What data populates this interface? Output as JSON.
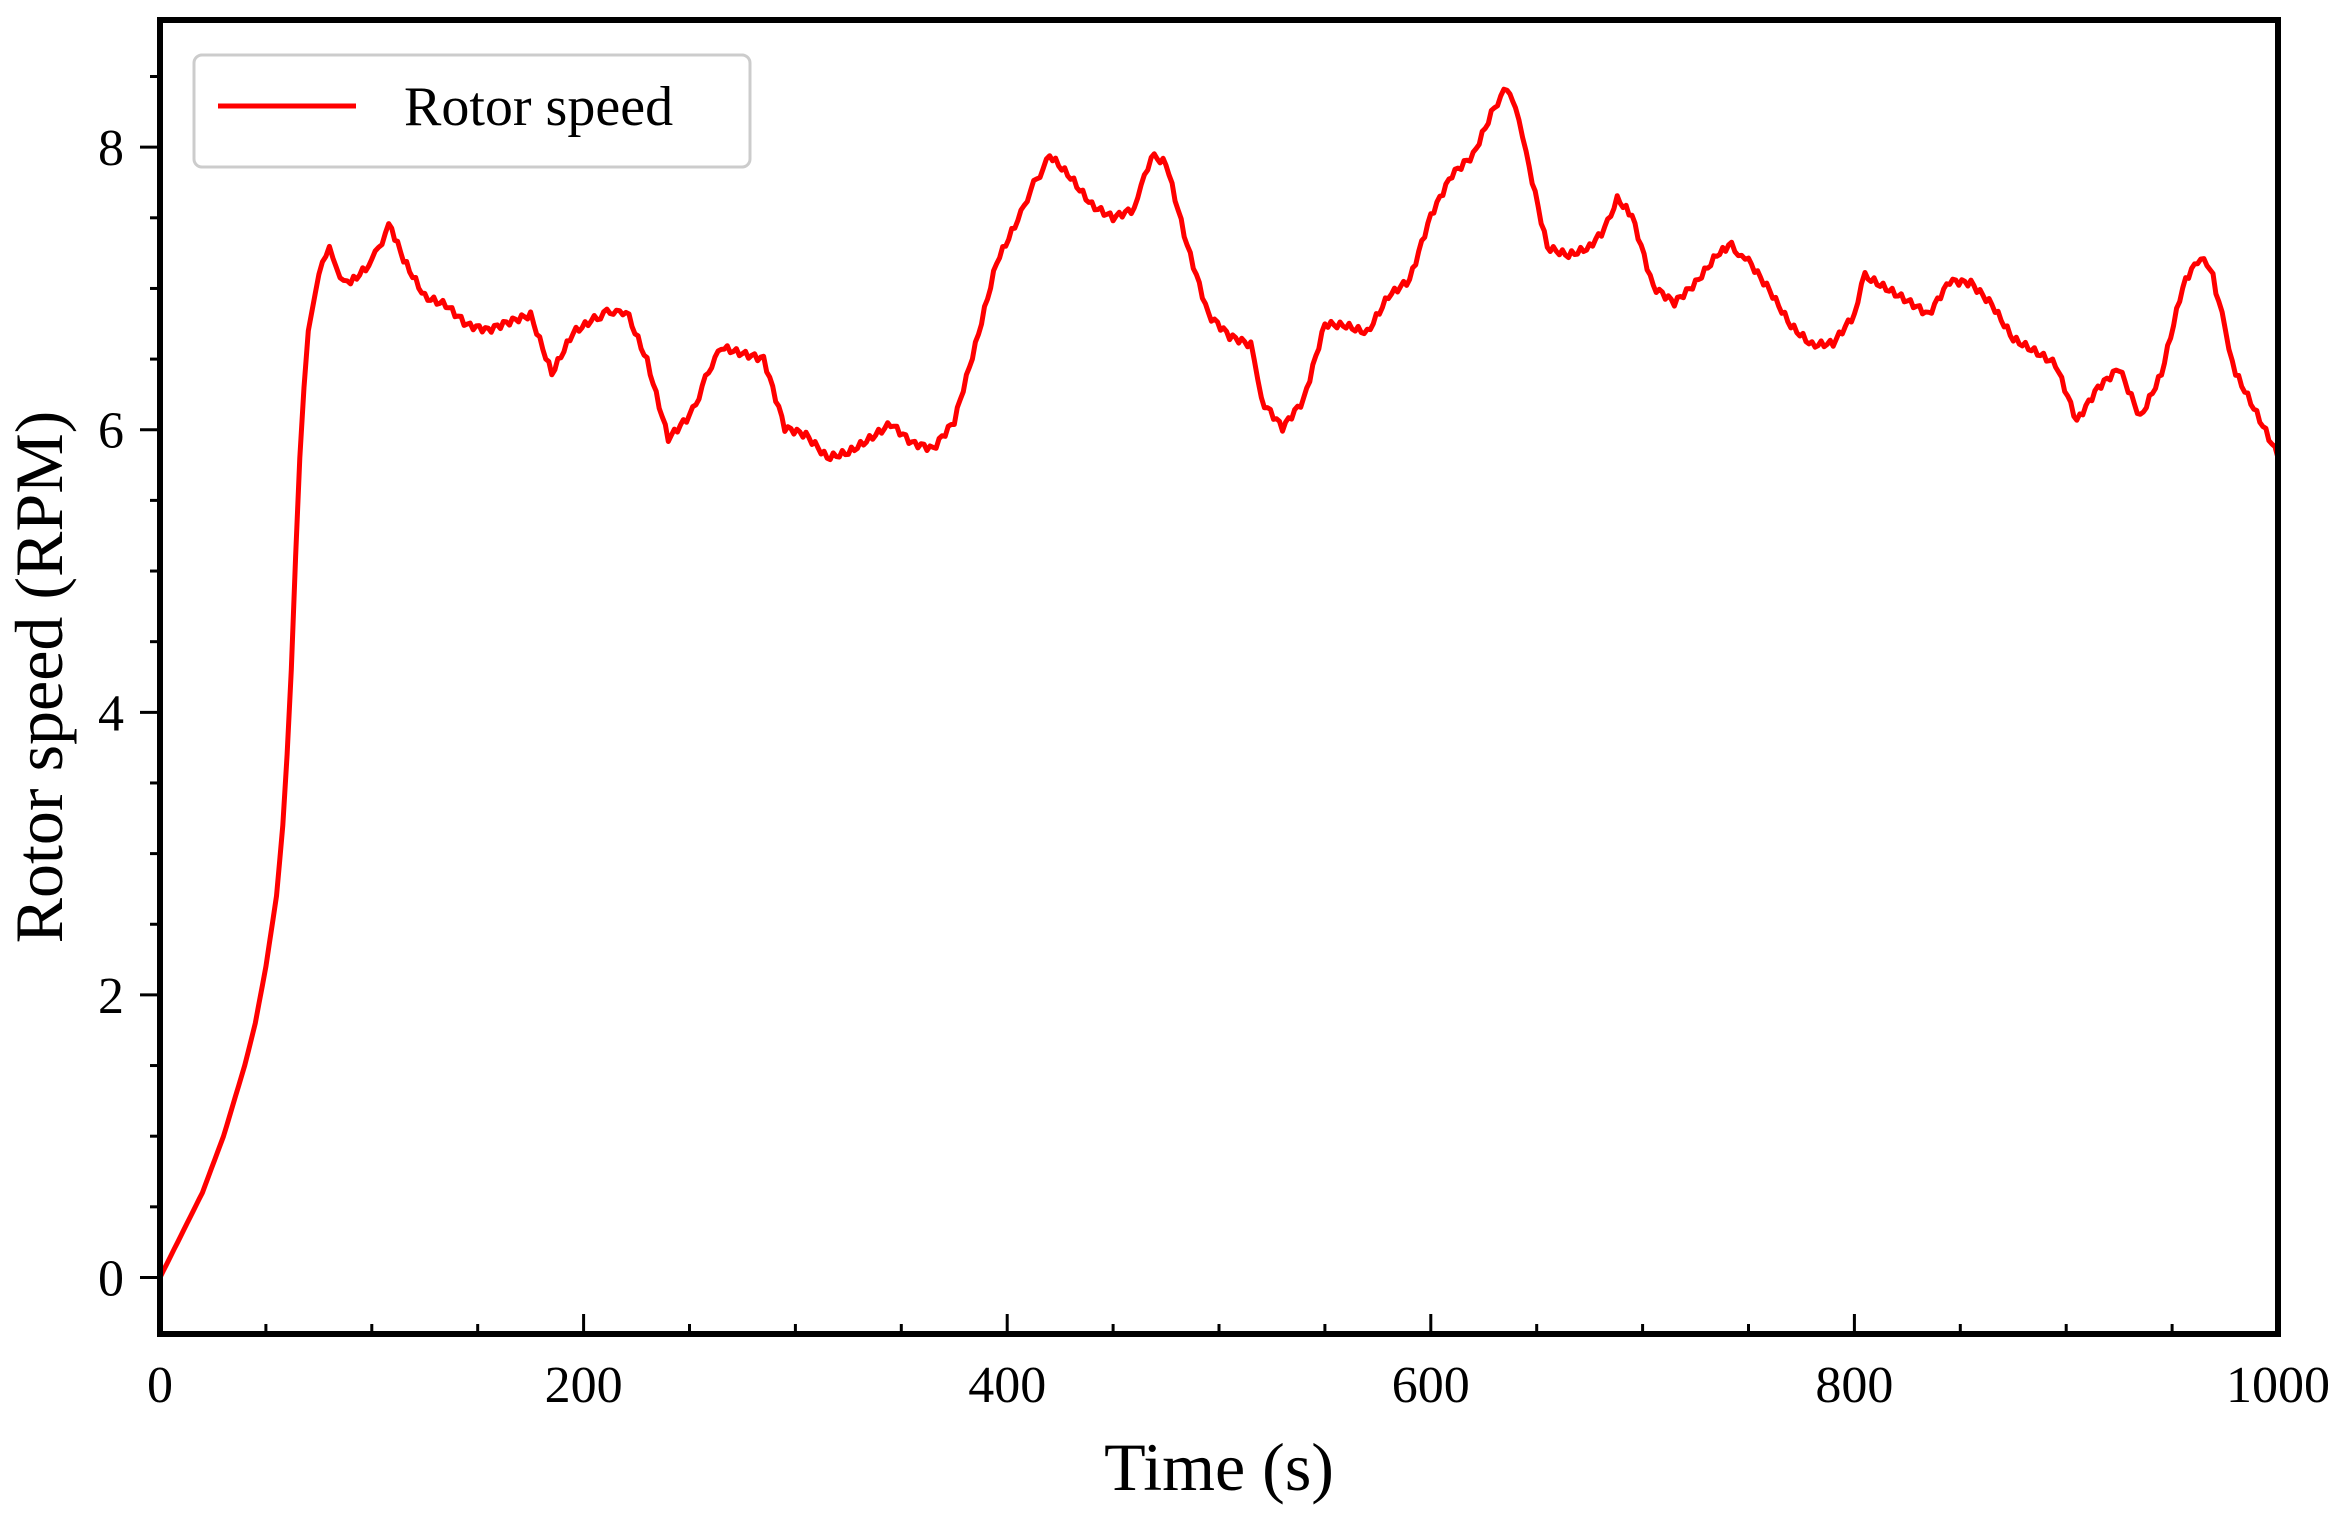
{
  "chart_data": {
    "type": "line",
    "title": "",
    "xlabel": "Time (s)",
    "ylabel": "Rotor speed (RPM)",
    "xlim": [
      0,
      1000
    ],
    "ylim": [
      -0.4,
      8.9
    ],
    "xticks": [
      0,
      200,
      400,
      600,
      800,
      1000
    ],
    "yticks": [
      0,
      2,
      4,
      6,
      8
    ],
    "x_minor_step": 50,
    "y_minor_step": 0.5,
    "grid": false,
    "legend": {
      "position": "top-left",
      "entries": [
        "Rotor speed"
      ]
    },
    "series": [
      {
        "name": "Rotor speed",
        "color": "#ff0000",
        "x": [
          0,
          5,
          10,
          20,
          30,
          40,
          45,
          50,
          55,
          58,
          60,
          62,
          64,
          66,
          68,
          70,
          75,
          80,
          85,
          90,
          100,
          108,
          115,
          125,
          135,
          145,
          155,
          165,
          175,
          185,
          195,
          205,
          220,
          230,
          240,
          250,
          265,
          275,
          285,
          295,
          305,
          315,
          325,
          335,
          345,
          355,
          365,
          375,
          385,
          395,
          405,
          420,
          430,
          440,
          450,
          460,
          468,
          475,
          485,
          495,
          505,
          515,
          520,
          530,
          540,
          550,
          560,
          570,
          580,
          590,
          600,
          610,
          620,
          630,
          636,
          640,
          645,
          655,
          665,
          675,
          682,
          688,
          695,
          705,
          715,
          725,
          735,
          742,
          750,
          760,
          770,
          780,
          790,
          800,
          805,
          815,
          825,
          835,
          845,
          855,
          865,
          875,
          885,
          895,
          905,
          915,
          925,
          935,
          945,
          955,
          962,
          968,
          972,
          980,
          990,
          1000
        ],
        "values": [
          0.0,
          0.15,
          0.3,
          0.6,
          1.0,
          1.5,
          1.8,
          2.2,
          2.7,
          3.2,
          3.7,
          4.3,
          5.1,
          5.8,
          6.3,
          6.7,
          7.1,
          7.3,
          7.1,
          7.05,
          7.2,
          7.45,
          7.2,
          6.95,
          6.9,
          6.75,
          6.7,
          6.75,
          6.8,
          6.4,
          6.7,
          6.8,
          6.85,
          6.5,
          5.95,
          6.1,
          6.6,
          6.55,
          6.5,
          6.0,
          5.95,
          5.8,
          5.85,
          5.95,
          6.05,
          5.9,
          5.85,
          6.05,
          6.6,
          7.2,
          7.5,
          7.95,
          7.8,
          7.6,
          7.5,
          7.55,
          7.95,
          7.9,
          7.3,
          6.8,
          6.65,
          6.6,
          6.2,
          6.0,
          6.2,
          6.75,
          6.75,
          6.7,
          6.95,
          7.05,
          7.5,
          7.8,
          7.95,
          8.3,
          8.4,
          8.3,
          7.95,
          7.3,
          7.25,
          7.3,
          7.4,
          7.65,
          7.5,
          7.0,
          6.9,
          7.05,
          7.25,
          7.3,
          7.2,
          7.0,
          6.75,
          6.6,
          6.6,
          6.8,
          7.1,
          7.0,
          6.9,
          6.8,
          7.05,
          7.05,
          6.9,
          6.65,
          6.55,
          6.45,
          6.05,
          6.3,
          6.45,
          6.1,
          6.4,
          7.0,
          7.2,
          7.15,
          6.9,
          6.4,
          6.1,
          5.8
        ]
      }
    ]
  }
}
